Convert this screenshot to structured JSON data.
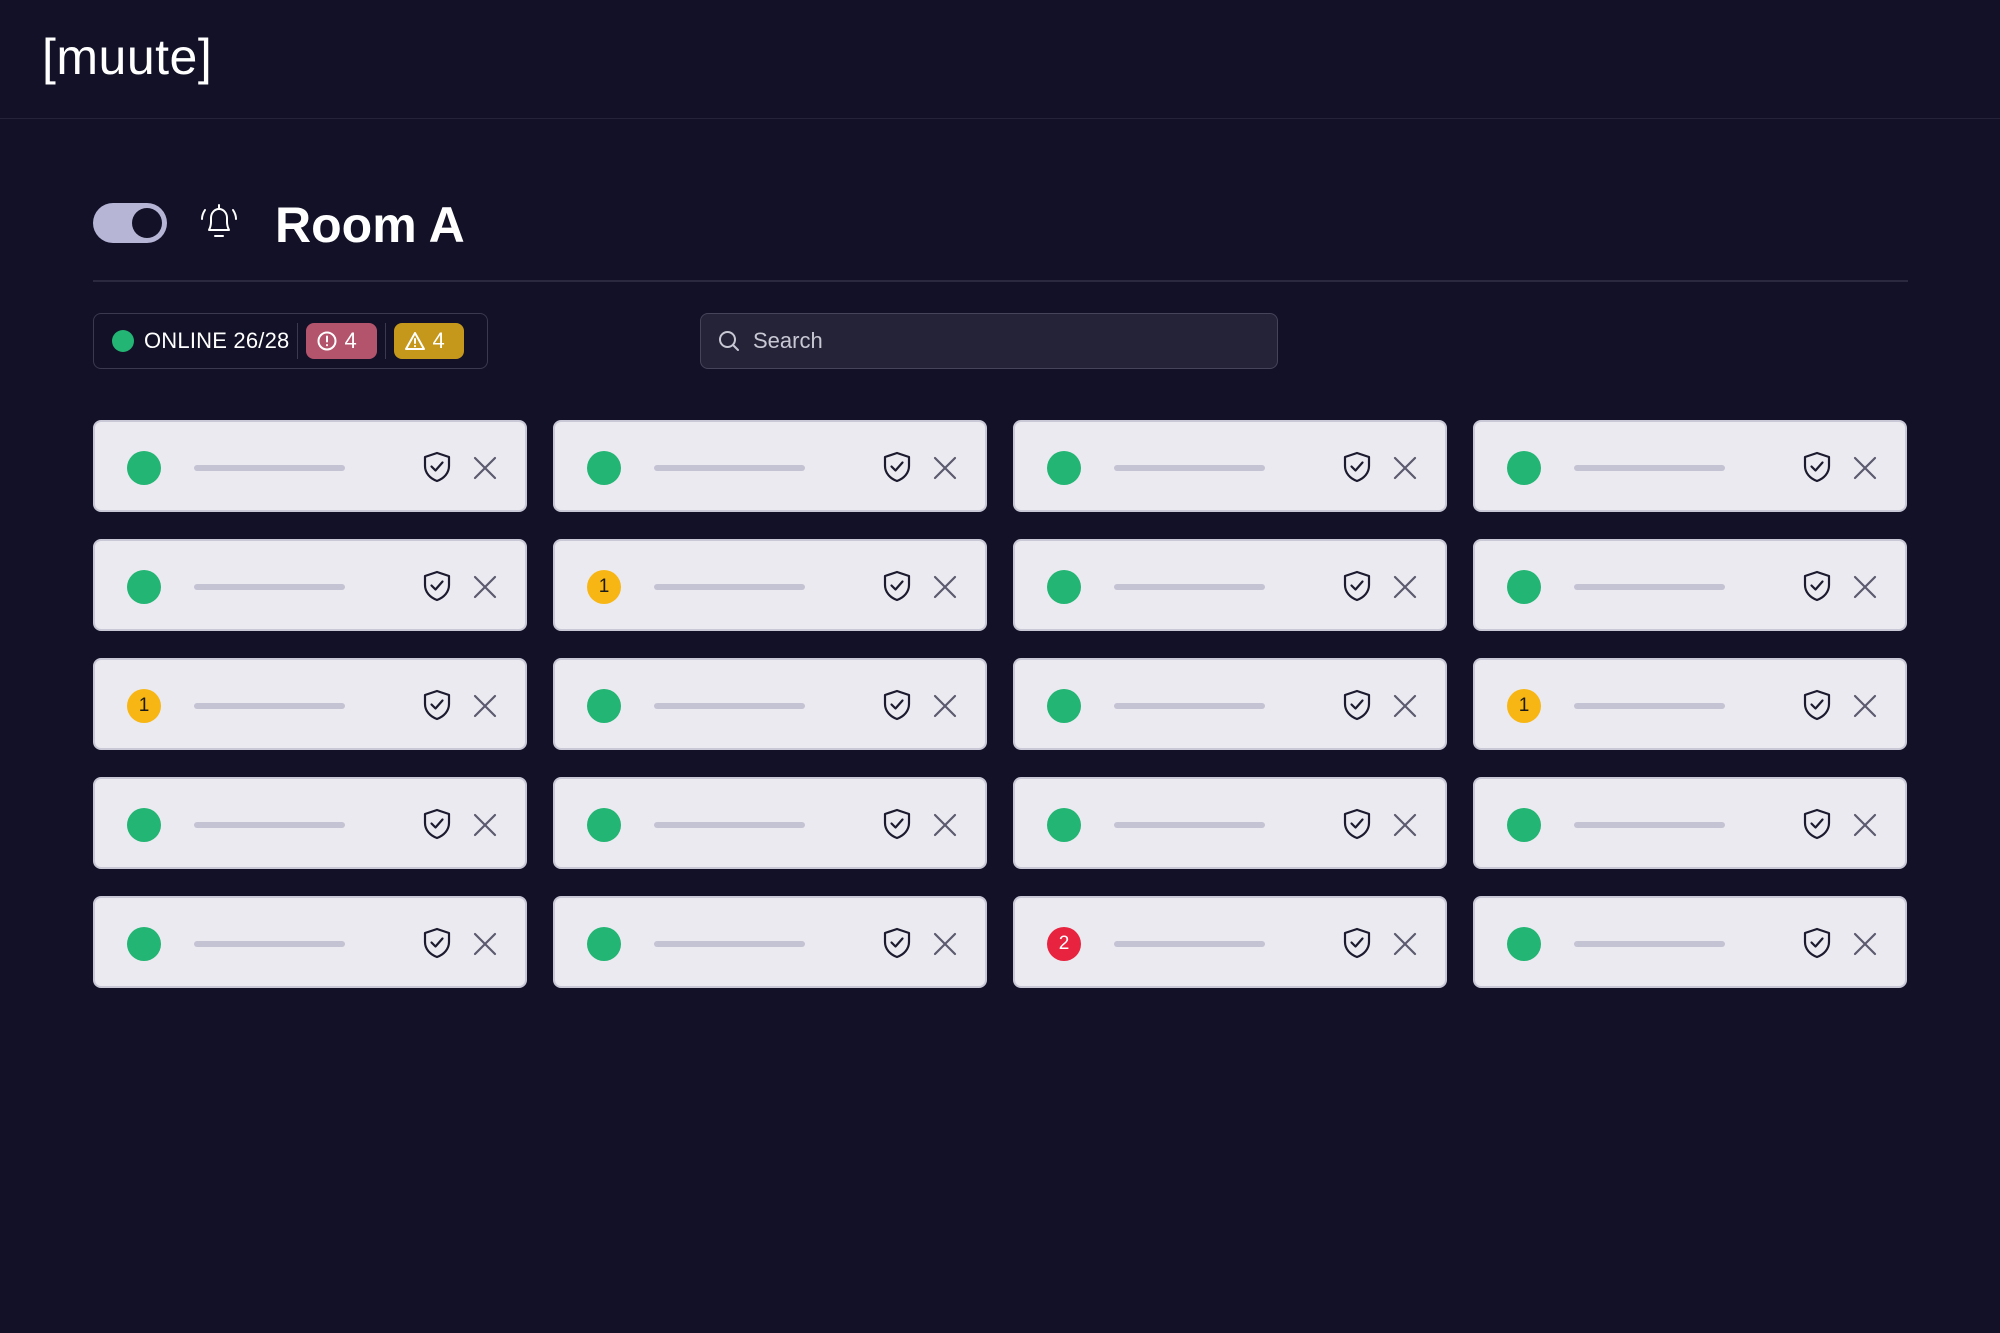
{
  "app": {
    "logo_text": "[muute]"
  },
  "room": {
    "title": "Room A",
    "alarm_toggle_on": true,
    "icons": {
      "toggle": "toggle-switch",
      "bell": "bell-icon"
    }
  },
  "status": {
    "online_label": "ONLINE 26/28",
    "error_count": "4",
    "warning_count": "4",
    "colors": {
      "online": "#22b573",
      "error_badge": "#b4546c",
      "warning_badge": "#c5971b"
    }
  },
  "search": {
    "placeholder": "Search",
    "value": ""
  },
  "devices": [
    {
      "status": "online",
      "count": ""
    },
    {
      "status": "online",
      "count": ""
    },
    {
      "status": "online",
      "count": ""
    },
    {
      "status": "online",
      "count": ""
    },
    {
      "status": "online",
      "count": ""
    },
    {
      "status": "warning",
      "count": "1"
    },
    {
      "status": "online",
      "count": ""
    },
    {
      "status": "online",
      "count": ""
    },
    {
      "status": "warning",
      "count": "1"
    },
    {
      "status": "online",
      "count": ""
    },
    {
      "status": "online",
      "count": ""
    },
    {
      "status": "warning",
      "count": "1"
    },
    {
      "status": "online",
      "count": ""
    },
    {
      "status": "online",
      "count": ""
    },
    {
      "status": "online",
      "count": ""
    },
    {
      "status": "online",
      "count": ""
    },
    {
      "status": "online",
      "count": ""
    },
    {
      "status": "online",
      "count": ""
    },
    {
      "status": "error",
      "count": "2"
    },
    {
      "status": "online",
      "count": ""
    }
  ],
  "device_actions": {
    "shield_icon": "shield-check-icon",
    "close_icon": "close-icon"
  },
  "colors": {
    "background": "#121127",
    "card": "#ebeaf0",
    "status_online": "#22b573",
    "status_warning": "#f7b614",
    "status_error": "#e8233f"
  }
}
